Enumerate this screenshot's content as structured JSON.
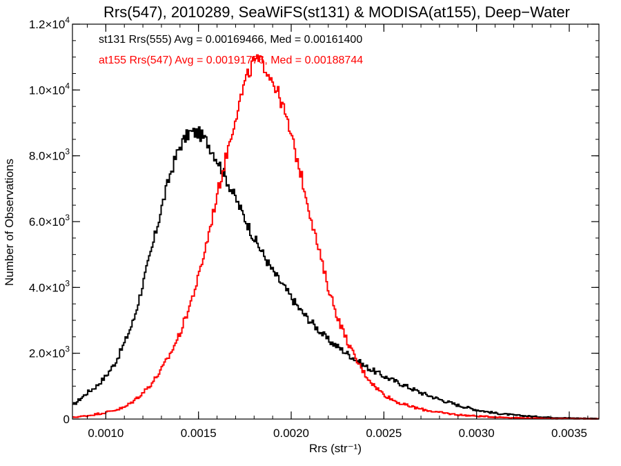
{
  "chart_data": {
    "type": "line",
    "title": "Rrs(547), 2010289, SeaWiFS(st131) & MODISA(at155), Deep−Water",
    "xlabel": "Rrs (str⁻¹)",
    "ylabel": "Number of Observations",
    "xlim": [
      0.00082,
      0.00366
    ],
    "ylim": [
      0,
      12000
    ],
    "x_ticks": [
      {
        "value": 0.001,
        "label": "0.0010"
      },
      {
        "value": 0.0015,
        "label": "0.0015"
      },
      {
        "value": 0.002,
        "label": "0.0020"
      },
      {
        "value": 0.0025,
        "label": "0.0025"
      },
      {
        "value": 0.003,
        "label": "0.0030"
      },
      {
        "value": 0.0035,
        "label": "0.0035"
      }
    ],
    "y_ticks": [
      {
        "value": 0,
        "mant": "0",
        "exp": ""
      },
      {
        "value": 2000,
        "mant": "2.0×10",
        "exp": "3"
      },
      {
        "value": 4000,
        "mant": "4.0×10",
        "exp": "3"
      },
      {
        "value": 6000,
        "mant": "6.0×10",
        "exp": "3"
      },
      {
        "value": 8000,
        "mant": "8.0×10",
        "exp": "3"
      },
      {
        "value": 10000,
        "mant": "1.0×10",
        "exp": "4"
      },
      {
        "value": 12000,
        "mant": "1.2×10",
        "exp": "4"
      }
    ],
    "grid": false,
    "annotations": [
      {
        "text": "st131 Rrs(555) Avg = 0.00169466, Med = 0.00161400",
        "color": "#000000"
      },
      {
        "text": "at155 Rrs(547) Avg = 0.00191776, Med = 0.00188744",
        "color": "#ff0000"
      }
    ],
    "series": [
      {
        "color": "#000000",
        "x": [
          0.00082,
          0.0009,
          0.00095,
          0.001,
          0.00105,
          0.0011,
          0.00115,
          0.0012,
          0.00125,
          0.0013,
          0.00135,
          0.0014,
          0.00145,
          0.0015,
          0.00155,
          0.0016,
          0.00165,
          0.0017,
          0.00175,
          0.0018,
          0.00185,
          0.0019,
          0.00195,
          0.002,
          0.00205,
          0.0021,
          0.00215,
          0.0022,
          0.00225,
          0.0023,
          0.00235,
          0.0024,
          0.0025,
          0.0026,
          0.0027,
          0.0028,
          0.0029,
          0.003,
          0.0031,
          0.0032,
          0.0033,
          0.0034,
          0.0035,
          0.00366
        ],
        "y": [
          400,
          800,
          1000,
          1300,
          1700,
          2300,
          3000,
          4100,
          5200,
          6400,
          7500,
          8300,
          8700,
          8700,
          8400,
          7900,
          7300,
          6700,
          6100,
          5500,
          5000,
          4500,
          4100,
          3700,
          3300,
          3000,
          2700,
          2400,
          2200,
          2000,
          1800,
          1600,
          1300,
          1050,
          800,
          600,
          420,
          280,
          180,
          120,
          80,
          50,
          30,
          15
        ]
      },
      {
        "color": "#ff0000",
        "x": [
          0.00082,
          0.0009,
          0.001,
          0.0011,
          0.00115,
          0.0012,
          0.00125,
          0.0013,
          0.00135,
          0.0014,
          0.00145,
          0.0015,
          0.00155,
          0.0016,
          0.00165,
          0.0017,
          0.00175,
          0.0018,
          0.00185,
          0.0019,
          0.00195,
          0.002,
          0.00205,
          0.0021,
          0.00215,
          0.0022,
          0.00225,
          0.0023,
          0.00235,
          0.0024,
          0.00245,
          0.0025,
          0.00255,
          0.0026,
          0.0027,
          0.0028,
          0.0029,
          0.003,
          0.0031,
          0.0032,
          0.0033,
          0.0034,
          0.0035,
          0.00366
        ],
        "y": [
          50,
          100,
          200,
          350,
          550,
          800,
          1100,
          1500,
          2000,
          2600,
          3400,
          4300,
          5500,
          6800,
          8000,
          9200,
          10200,
          10900,
          10800,
          10300,
          9600,
          8600,
          7500,
          6300,
          5100,
          4000,
          3100,
          2400,
          1800,
          1350,
          1000,
          750,
          580,
          450,
          300,
          200,
          130,
          90,
          60,
          40,
          25,
          15,
          10,
          5
        ]
      }
    ]
  }
}
